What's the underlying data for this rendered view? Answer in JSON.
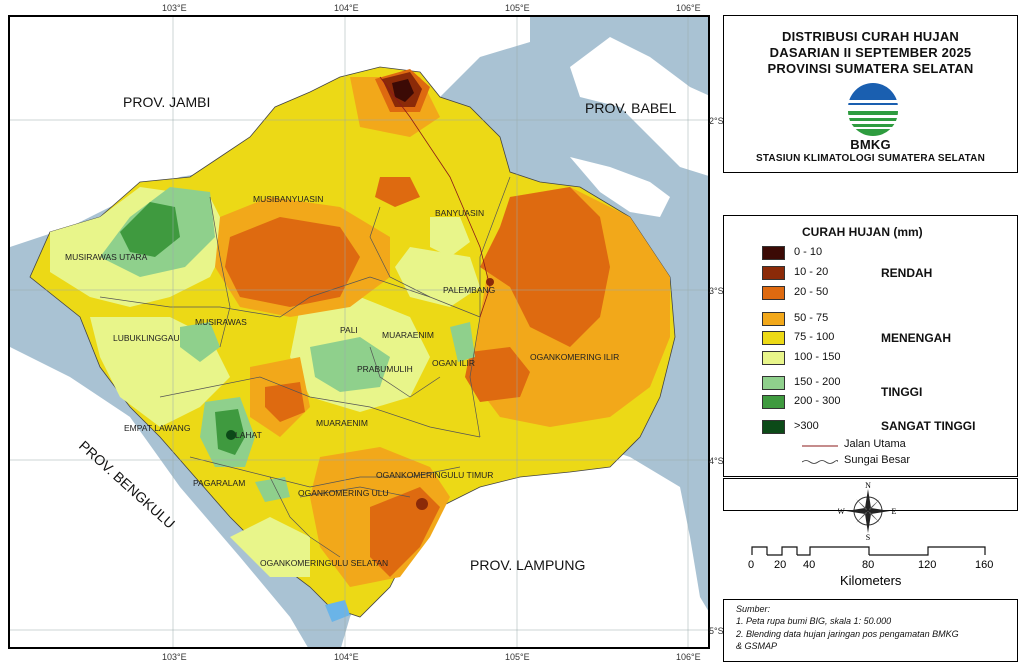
{
  "title": {
    "line1": "DISTRIBUSI CURAH HUJAN",
    "line2": "DASARIAN II SEPTEMBER 2025",
    "line3": "PROVINSI SUMATERA SELATAN",
    "org": "BMKG",
    "station": "STASIUN KLIMATOLOGI SUMATERA SELATAN"
  },
  "coords": {
    "top": [
      "103°E",
      "104°E",
      "105°E",
      "106°E"
    ],
    "bottom": [
      "103°E",
      "104°E",
      "105°E",
      "106°E"
    ],
    "right": [
      "2°S",
      "3°S",
      "4°S",
      "5°S"
    ]
  },
  "provinces": {
    "jambi": "PROV. JAMBI",
    "babel": "PROV. BABEL",
    "bengkulu": "PROV. BENGKULU",
    "lampung": "PROV. LAMPUNG"
  },
  "regions": {
    "musi_banyuasin": "MUSIBANYUASIN",
    "banyuasin": "BANYUASIN",
    "musirawas_utara": "MUSIRAWAS UTARA",
    "musirawas": "MUSIRAWAS",
    "lubuklinggau": "LUBUKLINGGAU",
    "pali": "PALI",
    "muaraenim_n": "MUARAENIM",
    "palembang": "PALEMBANG",
    "ogan_ilir": "OGAN ILIR",
    "prabumulih": "PRABUMULIH",
    "oki": "OGANKOMERING ILIR",
    "empat_lawang": "EMPAT LAWANG",
    "lahat": "LAHAT",
    "muaraenim": "MUARAENIM",
    "pagaralam": "PAGARALAM",
    "oku_timur": "OGANKOMERINGULU TIMUR",
    "oku": "OGANKOMERING ULU",
    "oku_selatan": "OGANKOMERINGULU SELATAN"
  },
  "legend": {
    "title": "CURAH HUJAN (mm)",
    "classes": [
      {
        "label": "0 - 10",
        "color": "#3b0a05"
      },
      {
        "label": "10 - 20",
        "color": "#8b2a08"
      },
      {
        "label": "20 - 50",
        "color": "#de6a10"
      },
      {
        "label": "50 - 75",
        "color": "#f2a81a"
      },
      {
        "label": "75 - 100",
        "color": "#ecd916"
      },
      {
        "label": "100 - 150",
        "color": "#e8f58a"
      },
      {
        "label": "150 - 200",
        "color": "#8fd08c"
      },
      {
        "label": "200 - 300",
        "color": "#3f9a3f"
      },
      {
        "label": ">300",
        "color": "#0c4a18"
      }
    ],
    "categories": {
      "low": "RENDAH",
      "medium": "MENENGAH",
      "high": "TINGGI",
      "very_high": "SANGAT TINGGI"
    },
    "road": "Jalan Utama",
    "river": "Sungai Besar"
  },
  "compass": {
    "n": "N",
    "s": "S",
    "e": "E",
    "w": "W"
  },
  "scale": {
    "ticks": [
      "0",
      "20",
      "40",
      "80",
      "120",
      "160"
    ],
    "unit": "Kilometers"
  },
  "source": {
    "heading": "Sumber:",
    "line1": "1. Peta rupa bumi BIG, skala 1: 50.000",
    "line2": "2. Blending data hujan jaringan pos pengamatan BMKG",
    "line3": "& GSMAP"
  }
}
